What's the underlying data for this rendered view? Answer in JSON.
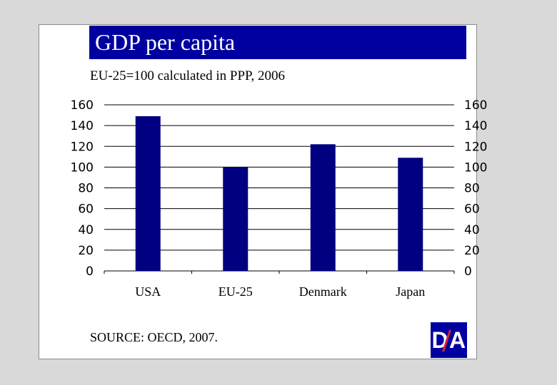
{
  "colors": {
    "bar": "#000080",
    "title_bg": "#0000a0",
    "grid": "#000000",
    "logo_bg": "#0000a0",
    "logo_accent": "#e0202e"
  },
  "title": "GDP per capita",
  "subtitle": "EU-25=100 calculated in PPP, 2006",
  "source": "SOURCE: OECD, 2007.",
  "logo": {
    "left_letter": "D",
    "right_letter": "A"
  },
  "chart_data": {
    "type": "bar",
    "categories": [
      "USA",
      "EU-25",
      "Denmark",
      "Japan"
    ],
    "values": [
      149,
      100,
      122,
      109
    ],
    "ylim": [
      0,
      160
    ],
    "yticks": [
      0,
      20,
      40,
      60,
      80,
      100,
      120,
      140,
      160
    ],
    "xlabel": "",
    "ylabel": "",
    "grid": true,
    "dual_axis_labels": true
  }
}
